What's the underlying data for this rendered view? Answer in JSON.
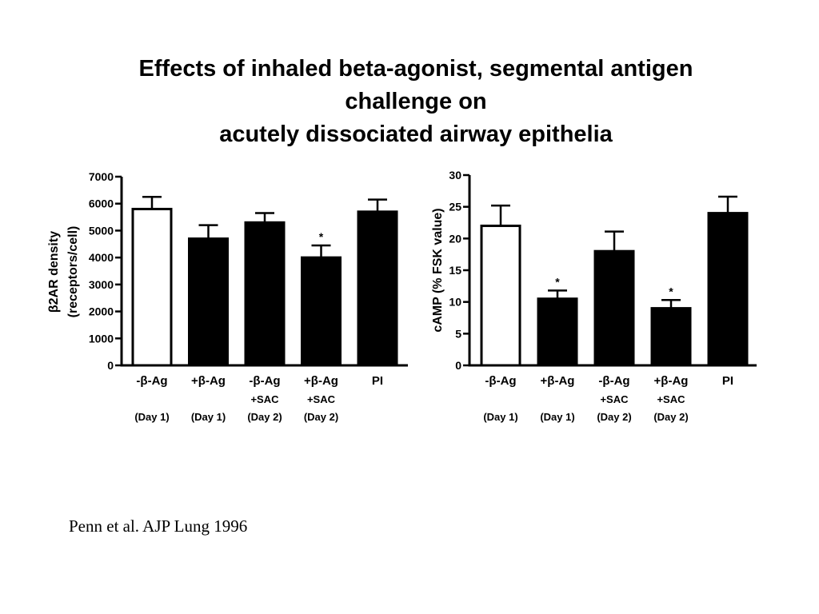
{
  "slide": {
    "title_lines": [
      "Effects of inhaled beta-agonist, segmental antigen",
      "challenge on",
      "acutely dissociated airway epithelia"
    ],
    "citation": "Penn et al. AJP Lung 1996"
  },
  "chart_data": [
    {
      "type": "bar",
      "ylabel_lines": [
        "β2AR density",
        "(receptors/cell)"
      ],
      "ylim": [
        0,
        7000
      ],
      "yticks": [
        "0",
        "1000",
        "2000",
        "3000",
        "4000",
        "5000",
        "6000",
        "7000"
      ],
      "categories": [
        {
          "label": "-β-Ag",
          "sub": "",
          "day": "(Day 1)"
        },
        {
          "label": "+β-Ag",
          "sub": "",
          "day": "(Day 1)"
        },
        {
          "label": "-β-Ag",
          "sub": "+SAC",
          "day": "(Day 2)"
        },
        {
          "label": "+β-Ag",
          "sub": "+SAC",
          "day": "(Day 2)"
        },
        {
          "label": "PI",
          "sub": "",
          "day": ""
        }
      ],
      "values": [
        5800,
        4700,
        5300,
        4000,
        5700
      ],
      "errors": [
        450,
        500,
        350,
        450,
        450
      ],
      "significance": [
        "",
        "",
        "",
        "*",
        ""
      ],
      "fills": [
        "#ffffff",
        "#000000",
        "#000000",
        "#000000",
        "#000000"
      ]
    },
    {
      "type": "bar",
      "ylabel_lines": [
        "cAMP (% FSK value)"
      ],
      "ylim": [
        0,
        30
      ],
      "yticks": [
        "0",
        "5",
        "10",
        "15",
        "20",
        "25",
        "30"
      ],
      "categories": [
        {
          "label": "-β-Ag",
          "sub": "",
          "day": "(Day 1)"
        },
        {
          "label": "+β-Ag",
          "sub": "",
          "day": "(Day 1)"
        },
        {
          "label": "-β-Ag",
          "sub": "+SAC",
          "day": "(Day 2)"
        },
        {
          "label": "+β-Ag",
          "sub": "+SAC",
          "day": "(Day 2)"
        },
        {
          "label": "PI",
          "sub": "",
          "day": ""
        }
      ],
      "values": [
        22,
        10.5,
        18,
        9,
        24
      ],
      "errors": [
        3.2,
        1.3,
        3.1,
        1.3,
        2.6
      ],
      "significance": [
        "",
        "*",
        "",
        "*",
        ""
      ],
      "fills": [
        "#ffffff",
        "#000000",
        "#000000",
        "#000000",
        "#000000"
      ]
    }
  ]
}
